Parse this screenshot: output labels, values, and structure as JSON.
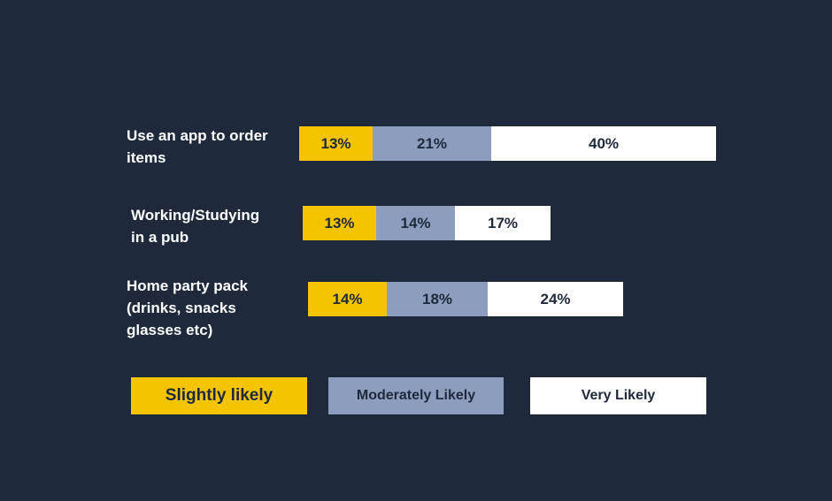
{
  "chart_data": {
    "type": "bar",
    "orientation": "horizontal",
    "stacked": true,
    "categories": [
      [
        "Use an app to order",
        "items"
      ],
      [
        "Working/Studying",
        "in a pub"
      ],
      [
        "Home party pack",
        "(drinks, snacks",
        "glasses etc)"
      ]
    ],
    "series": [
      {
        "name": "Slightly likely",
        "color": "#f5c400",
        "values": [
          13,
          13,
          14
        ],
        "labels": [
          "13%",
          "13%",
          "14%"
        ]
      },
      {
        "name": "Moderately Likely",
        "color": "#8d9dbd",
        "values": [
          21,
          14,
          18
        ],
        "labels": [
          "21%",
          "14%",
          "18%"
        ]
      },
      {
        "name": "Very Likely",
        "color": "#ffffff",
        "values": [
          40,
          17,
          24
        ],
        "labels": [
          "40%",
          "17%",
          "24%"
        ]
      }
    ],
    "legend": {
      "placement": "bottom",
      "items": [
        "Slightly likely",
        "Moderately Likely",
        "Very Likely"
      ]
    },
    "grid": false
  },
  "colors": {
    "background": "#1e293b",
    "label_text": "#ffffff",
    "bar_text": "#1e293b"
  }
}
